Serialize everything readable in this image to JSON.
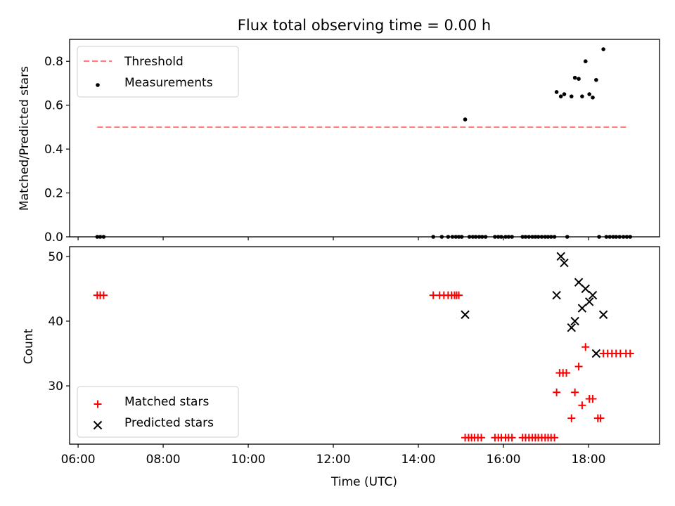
{
  "chart_data": [
    {
      "type": "scatter",
      "title": "Flux total observing time = 0.00 h",
      "xlabel": "",
      "ylabel": "Matched/Predicted stars",
      "xlim": [
        5.8,
        19.67
      ],
      "ylim": [
        0.0,
        0.9
      ],
      "yticks": [
        0.0,
        0.2,
        0.4,
        0.6,
        0.8
      ],
      "ytick_labels": [
        "0.0",
        "0.2",
        "0.4",
        "0.6",
        "0.8"
      ],
      "xtick_labels_shown": false,
      "legend_position": "upper left",
      "series": [
        {
          "name": "Threshold",
          "kind": "line",
          "style": "dashed",
          "color": "#ff7f7f",
          "x": [
            6.45,
            18.95
          ],
          "y": [
            0.5,
            0.5
          ]
        },
        {
          "name": "Measurements",
          "kind": "scatter",
          "marker": "dot",
          "color": "#000000",
          "x": [
            6.45,
            6.52,
            6.6,
            14.35,
            14.55,
            14.7,
            14.8,
            14.88,
            14.95,
            15.02,
            15.1,
            15.2,
            15.28,
            15.35,
            15.43,
            15.5,
            15.58,
            15.8,
            15.88,
            15.95,
            16.05,
            16.12,
            16.2,
            16.45,
            16.52,
            16.6,
            16.68,
            16.75,
            16.82,
            16.9,
            16.98,
            17.05,
            17.12,
            17.2,
            17.25,
            17.35,
            17.43,
            17.5,
            17.6,
            17.68,
            17.77,
            17.85,
            17.93,
            18.02,
            18.1,
            18.18,
            18.25,
            18.35,
            18.42,
            18.5,
            18.58,
            18.65,
            18.73,
            18.82,
            18.9,
            18.98
          ],
          "y": [
            0.0,
            0.0,
            0.0,
            0.0,
            0.0,
            0.0,
            0.0,
            0.0,
            0.0,
            0.0,
            0.535,
            0.0,
            0.0,
            0.0,
            0.0,
            0.0,
            0.0,
            0.0,
            0.0,
            0.0,
            0.0,
            0.0,
            0.0,
            0.0,
            0.0,
            0.0,
            0.0,
            0.0,
            0.0,
            0.0,
            0.0,
            0.0,
            0.0,
            0.0,
            0.66,
            0.64,
            0.65,
            0.0,
            0.64,
            0.725,
            0.72,
            0.64,
            0.8,
            0.65,
            0.635,
            0.715,
            0.0,
            0.855,
            0.0,
            0.0,
            0.0,
            0.0,
            0.0,
            0.0,
            0.0,
            0.0
          ]
        }
      ]
    },
    {
      "type": "scatter",
      "title": "",
      "xlabel": "Time (UTC)",
      "ylabel": "Count",
      "xlim": [
        5.8,
        19.67
      ],
      "ylim": [
        21.0,
        51.5
      ],
      "yticks": [
        30,
        40,
        50
      ],
      "ytick_labels": [
        "30",
        "40",
        "50"
      ],
      "xticks": [
        6,
        8,
        10,
        12,
        14,
        16,
        18
      ],
      "xtick_labels": [
        "06:00",
        "08:00",
        "10:00",
        "12:00",
        "14:00",
        "16:00",
        "18:00"
      ],
      "legend_position": "lower left",
      "series": [
        {
          "name": "Matched stars",
          "kind": "scatter",
          "marker": "plus",
          "color": "#ff0000",
          "x": [
            6.45,
            6.52,
            6.6,
            14.35,
            14.5,
            14.6,
            14.7,
            14.78,
            14.85,
            14.9,
            14.95,
            15.1,
            15.18,
            15.25,
            15.32,
            15.4,
            15.48,
            15.8,
            15.88,
            15.95,
            16.05,
            16.12,
            16.2,
            16.45,
            16.52,
            16.6,
            16.68,
            16.75,
            16.82,
            16.9,
            16.98,
            17.05,
            17.12,
            17.2,
            17.25,
            17.32,
            17.4,
            17.48,
            17.6,
            17.68,
            17.77,
            17.85,
            17.93,
            18.02,
            18.1,
            18.22,
            18.28,
            18.35,
            18.45,
            18.55,
            18.65,
            18.75,
            18.88,
            18.98
          ],
          "y": [
            44,
            44,
            44,
            44,
            44,
            44,
            44,
            44,
            44,
            44,
            44,
            22,
            22,
            22,
            22,
            22,
            22,
            22,
            22,
            22,
            22,
            22,
            22,
            22,
            22,
            22,
            22,
            22,
            22,
            22,
            22,
            22,
            22,
            22,
            29,
            32,
            32,
            32,
            25,
            29,
            33,
            27,
            36,
            28,
            28,
            25,
            25,
            35,
            35,
            35,
            35,
            35,
            35,
            35
          ]
        },
        {
          "name": "Predicted stars",
          "kind": "scatter",
          "marker": "x",
          "color": "#000000",
          "x": [
            15.1,
            17.25,
            17.35,
            17.43,
            17.6,
            17.68,
            17.77,
            17.85,
            17.93,
            18.02,
            18.1,
            18.18,
            18.35
          ],
          "y": [
            41,
            44,
            50,
            49,
            39,
            40,
            46,
            42,
            45,
            43,
            44,
            35,
            41
          ]
        }
      ]
    }
  ]
}
